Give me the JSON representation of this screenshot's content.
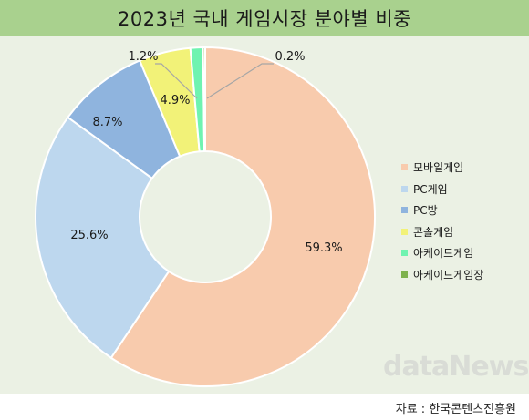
{
  "header": {
    "title": "2023년 국내 게임시장 분야별 비중"
  },
  "footer": {
    "source": "자료 : 한국콘텐츠진흥원",
    "watermark": "dataNews"
  },
  "colors": {
    "title_bg": "#a9d18e",
    "plot_bg": "#ebf1e4"
  },
  "chart_data": {
    "type": "donut",
    "title": "2023년 국내 게임시장 분야별 비중",
    "series": [
      {
        "name": "모바일게임",
        "value": 59.3,
        "label": "59.3%",
        "color": "#f8cbad"
      },
      {
        "name": "PC게임",
        "value": 25.6,
        "label": "25.6%",
        "color": "#bdd7ee"
      },
      {
        "name": "PC방",
        "value": 8.7,
        "label": "8.7%",
        "color": "#8fb4de"
      },
      {
        "name": "콘솔게임",
        "value": 4.9,
        "label": "4.9%",
        "color": "#f2f278"
      },
      {
        "name": "아케이드게임",
        "value": 1.2,
        "label": "1.2%",
        "color": "#6ff3b0"
      },
      {
        "name": "아케이드게임장",
        "value": 0.2,
        "label": "0.2%",
        "color": "#7fb24e"
      }
    ],
    "legend_position": "right"
  }
}
